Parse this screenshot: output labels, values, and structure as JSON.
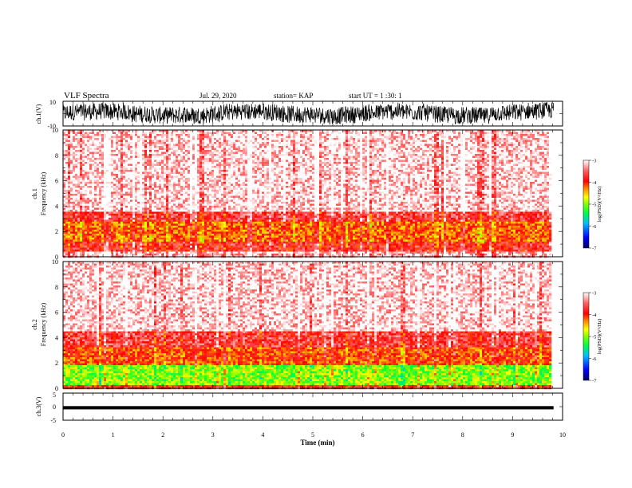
{
  "header": {
    "title": "VLF Spectra",
    "date": "Jul. 29, 2020",
    "station": "station= KAP",
    "start": "start UT =  1 :30: 1"
  },
  "chart_data": [
    {
      "type": "line",
      "ylabel": "ch.1(V)",
      "ylim": [
        -10,
        10
      ],
      "yticks": [
        "10",
        "-10"
      ],
      "xlim": [
        0,
        10
      ],
      "note": "dense noisy waveform spanning 0 to about 9.8 min",
      "series": [
        {
          "values_envelope_V": [
            -8,
            8
          ]
        }
      ]
    },
    {
      "type": "heatmap",
      "ylabel": "ch.1\nFrequency (kHz)",
      "ylabel_lines": [
        "ch.1",
        "Frequency (kHz)"
      ],
      "ylim": [
        0,
        10
      ],
      "yticks": [
        "0",
        "2",
        "4",
        "6",
        "8",
        "10"
      ],
      "xlim": [
        0,
        10
      ],
      "data_xmax": 9.8,
      "colorbar": {
        "label": "log(PSD)(V²/Hz)",
        "ticks": [
          "-3",
          "-4",
          "-5",
          "-6",
          "-7"
        ],
        "range": [
          -7,
          -3
        ]
      },
      "band_profile": [
        {
          "f": [
            0,
            0.4
          ],
          "level": -3.2
        },
        {
          "f": [
            0.4,
            1.2
          ],
          "level": -3.8
        },
        {
          "f": [
            1.2,
            2.8
          ],
          "level": -4.2
        },
        {
          "f": [
            2.8,
            3.5
          ],
          "level": -3.7
        },
        {
          "f": [
            3.5,
            10
          ],
          "level": -3.1
        }
      ]
    },
    {
      "type": "heatmap",
      "ylabel": "ch.2\nFrequency (kHz)",
      "ylabel_lines": [
        "ch.2",
        "Frequency (kHz)"
      ],
      "ylim": [
        0,
        10
      ],
      "yticks": [
        "0",
        "2",
        "4",
        "6",
        "8",
        "10"
      ],
      "xlim": [
        0,
        10
      ],
      "data_xmax": 9.8,
      "colorbar": {
        "label": "log(PSD)(V²/Hz)",
        "ticks": [
          "-3",
          "-4",
          "-5",
          "-6",
          "-7"
        ],
        "range": [
          -7,
          -3
        ]
      },
      "band_profile": [
        {
          "f": [
            0,
            0.3
          ],
          "level": -3.9
        },
        {
          "f": [
            0.3,
            1.8
          ],
          "level": -5.0
        },
        {
          "f": [
            1.8,
            3.2
          ],
          "level": -4.1
        },
        {
          "f": [
            3.2,
            4.5
          ],
          "level": -3.7
        },
        {
          "f": [
            4.5,
            10
          ],
          "level": -3.1
        }
      ]
    },
    {
      "type": "line",
      "ylabel": "ch.3(V)",
      "ylim": [
        -5,
        5
      ],
      "yticks": [
        "5",
        "0",
        "-5"
      ],
      "xlim": [
        0,
        10
      ],
      "xlabel": "Time (min)",
      "xticks": [
        "0",
        "1",
        "2",
        "3",
        "4",
        "5",
        "6",
        "7",
        "8",
        "9",
        "10"
      ],
      "series": [
        {
          "values_envelope_V": [
            -1.0,
            0.2
          ]
        }
      ]
    }
  ],
  "colors": {
    "cmap": [
      "#000080",
      "#0000ff",
      "#0080ff",
      "#00ffff",
      "#00ff00",
      "#80ff00",
      "#ffff00",
      "#ff8000",
      "#ff0000",
      "#ffffff"
    ]
  }
}
